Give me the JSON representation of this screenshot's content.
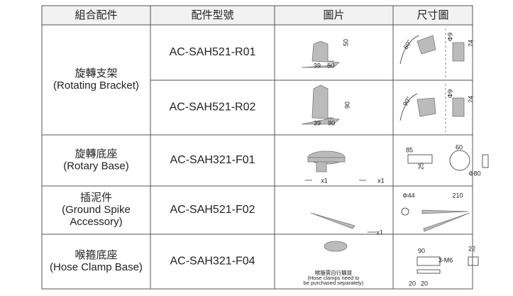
{
  "header": [
    "組合配件",
    "配件型號",
    "圖片",
    "尺寸圖"
  ],
  "groups": [
    {
      "accessory": [
        "旋轉支架",
        "(Rotating Bracket)"
      ],
      "items": [
        {
          "model": "AC-SAH521-R01",
          "photo_labels": [
            "50",
            "39",
            "80"
          ],
          "dimension_labels": [
            "60°",
            "Φ9",
            "24"
          ]
        },
        {
          "model": "AC-SAH521-R02",
          "photo_labels": [
            "90",
            "39",
            "90"
          ],
          "dimension_labels": [
            "90°",
            "Φ9",
            "24"
          ]
        }
      ]
    },
    {
      "accessory": [
        "旋轉底座",
        "(Rotary Base)"
      ],
      "items": [
        {
          "model": "AC-SAH321-F01",
          "photo_labels": [
            "x1",
            "x1"
          ],
          "dimension_labels": [
            "85",
            "25",
            "60",
            "Φ80"
          ]
        }
      ]
    },
    {
      "accessory": [
        "插泥件",
        "(Ground Spike",
        "Accessory)"
      ],
      "items": [
        {
          "model": "AC-SAH521-F02",
          "photo_labels": [
            "x1"
          ],
          "dimension_labels": [
            "Φ44",
            "210"
          ]
        }
      ]
    },
    {
      "accessory": [
        "喉箍底座",
        "(Hose Clamp Base)"
      ],
      "items": [
        {
          "model": "AC-SAH321-F04",
          "photo_labels": [
            "喉箍需自行購買",
            "(Hose clamps need to",
            "be purchased separately)"
          ],
          "dimension_labels": [
            "90",
            "3-M6",
            "22",
            "20",
            "20"
          ]
        }
      ]
    }
  ]
}
